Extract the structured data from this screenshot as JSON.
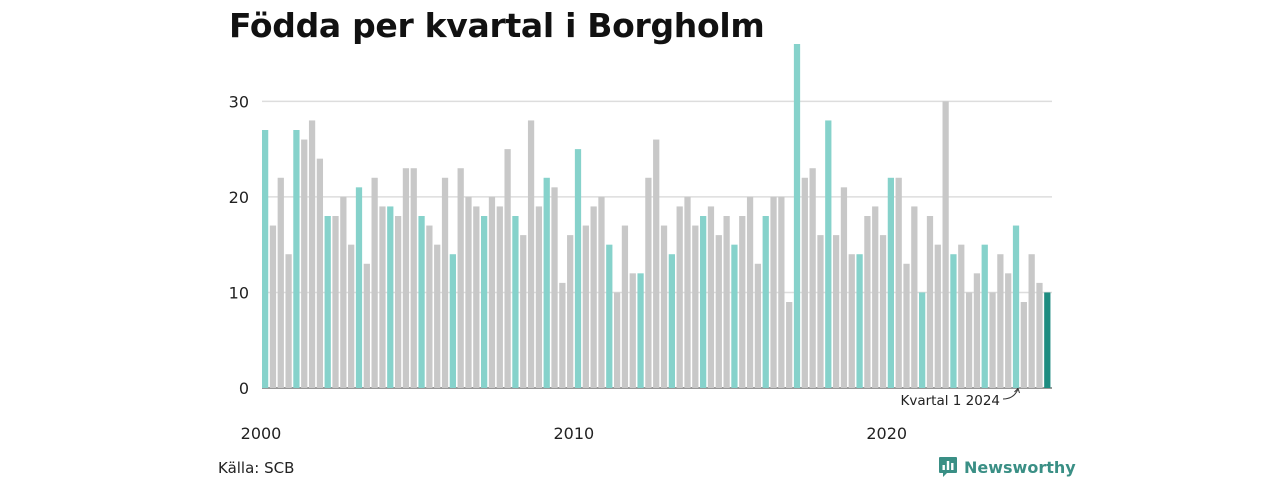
{
  "chart_data": {
    "type": "bar",
    "title": "Födda per kvartal i Borgholm",
    "source": "Källa: SCB",
    "brand": "Newsworthy",
    "start_year": 2000,
    "x_tick_labels": [
      "2000",
      "2010",
      "2020"
    ],
    "y_ticks": [
      0,
      10,
      20,
      30
    ],
    "ylim": [
      0,
      36
    ],
    "annotation": "Kvartal 1 2024",
    "colors": {
      "q1": "#86d2cb",
      "other": "#c8c8c8",
      "latest": "#1e8c80",
      "grid": "#dddddd",
      "axis": "#333333",
      "brand": "#3a8f85"
    },
    "values": [
      27,
      17,
      22,
      14,
      27,
      26,
      28,
      24,
      18,
      18,
      20,
      15,
      21,
      13,
      22,
      19,
      19,
      18,
      23,
      23,
      18,
      17,
      15,
      22,
      14,
      23,
      20,
      19,
      18,
      20,
      19,
      25,
      18,
      16,
      28,
      19,
      22,
      21,
      11,
      16,
      25,
      17,
      19,
      20,
      15,
      10,
      17,
      12,
      12,
      22,
      26,
      17,
      14,
      19,
      20,
      17,
      18,
      19,
      16,
      18,
      15,
      18,
      20,
      13,
      18,
      20,
      20,
      9,
      36,
      22,
      23,
      16,
      28,
      16,
      21,
      14,
      14,
      18,
      19,
      16,
      22,
      22,
      13,
      19,
      10,
      18,
      15,
      30,
      14,
      15,
      10,
      12,
      15,
      10,
      14,
      12,
      17,
      9,
      14,
      11,
      10
    ]
  }
}
